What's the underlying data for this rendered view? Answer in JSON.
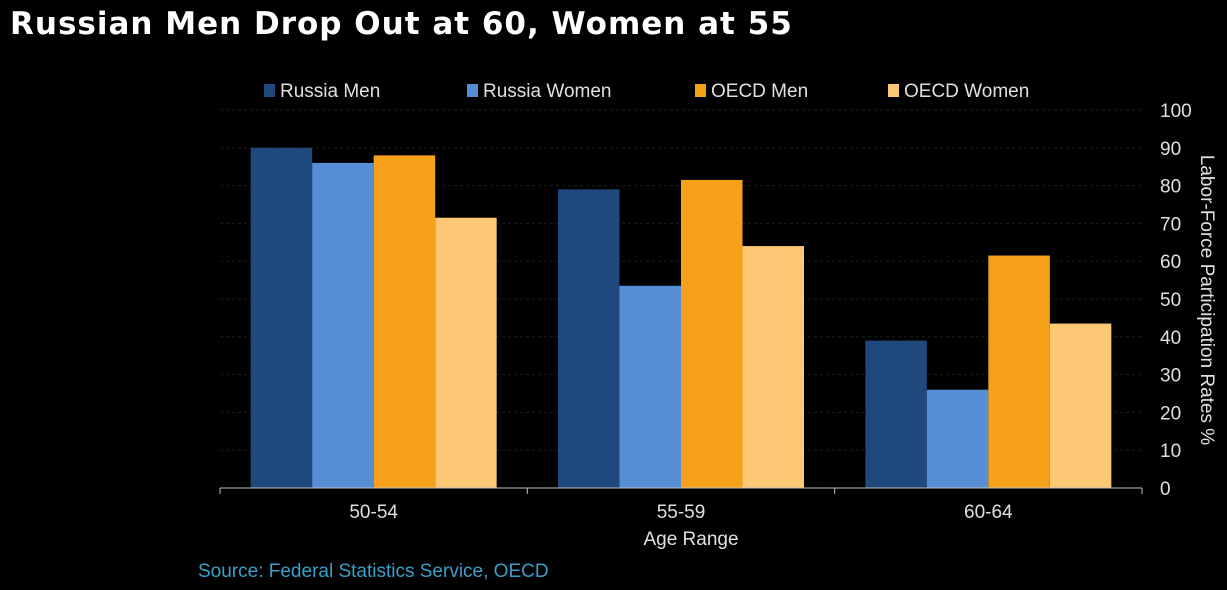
{
  "title": "Russian Men Drop Out at 60, Women at 55",
  "source": "Source: Federal Statistics Service, OECD",
  "chart_data": {
    "type": "bar",
    "categories": [
      "50-54",
      "55-59",
      "60-64"
    ],
    "series": [
      {
        "name": "Russia Men",
        "color": "#1f497d",
        "values": [
          90,
          79,
          39
        ]
      },
      {
        "name": "Russia Women",
        "color": "#558ed5",
        "values": [
          86,
          53.5,
          26
        ]
      },
      {
        "name": "OECD Men",
        "color": "#f7a11a",
        "values": [
          88,
          81.5,
          61.5
        ]
      },
      {
        "name": "OECD Women",
        "color": "#fdc874",
        "values": [
          71.5,
          64,
          43.5
        ]
      }
    ],
    "xlabel": "Age Range",
    "ylabel": "Labor-Force Participation Rates %",
    "ylim": [
      0,
      100
    ],
    "yticks": [
      "0",
      "10",
      "20",
      "30",
      "40",
      "50",
      "60",
      "70",
      "80",
      "90",
      "100"
    ],
    "grid": true,
    "legend_position": "top",
    "y_axis_side": "right"
  }
}
